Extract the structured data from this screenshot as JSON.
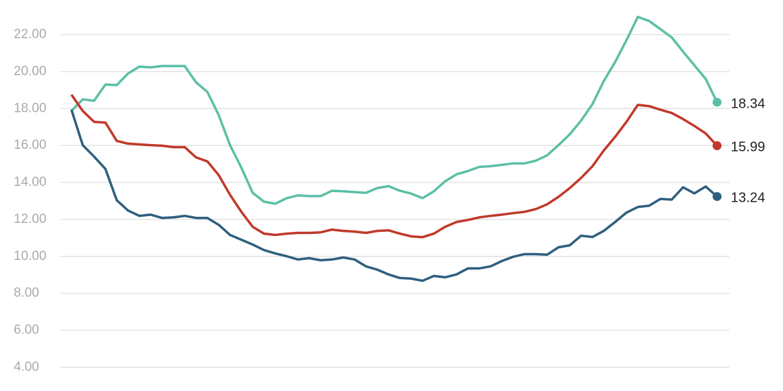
{
  "chart_data": {
    "type": "line",
    "categories": [
      null,
      null,
      null,
      null,
      null,
      null,
      null,
      null,
      null,
      null,
      null,
      null,
      null,
      null,
      null,
      null,
      null,
      null,
      null,
      null,
      null,
      null,
      null,
      null,
      null,
      null,
      null,
      null,
      null,
      null,
      null,
      null,
      null,
      null,
      null,
      null,
      null,
      null,
      null,
      null,
      null,
      null,
      null,
      null,
      null,
      null,
      null,
      null,
      null,
      null,
      null,
      null,
      null,
      null,
      null,
      null,
      null,
      null
    ],
    "series": [
      {
        "color": "#5bbfa6",
        "values": [
          17.87,
          18.5,
          18.42,
          19.3,
          19.27,
          19.9,
          20.27,
          20.23,
          20.3,
          20.3,
          20.3,
          19.42,
          18.9,
          17.65,
          16.02,
          14.8,
          13.44,
          12.96,
          12.85,
          13.15,
          13.3,
          13.26,
          13.26,
          13.55,
          13.52,
          13.48,
          13.44,
          13.7,
          13.8,
          13.55,
          13.4,
          13.15,
          13.52,
          14.07,
          14.44,
          14.62,
          14.84,
          14.88,
          14.95,
          15.03,
          15.03,
          15.18,
          15.47,
          16.02,
          16.61,
          17.35,
          18.24,
          19.49,
          20.52,
          21.7,
          22.96,
          22.74,
          22.3,
          21.85,
          21.08,
          20.34,
          19.6,
          18.34
        ]
      },
      {
        "color": "#c0392b",
        "values": [
          18.75,
          17.87,
          17.28,
          17.24,
          16.25,
          16.1,
          16.06,
          16.02,
          15.99,
          15.91,
          15.91,
          15.36,
          15.14,
          14.4,
          13.33,
          12.41,
          11.6,
          11.23,
          11.16,
          11.23,
          11.27,
          11.27,
          11.3,
          11.45,
          11.38,
          11.34,
          11.27,
          11.38,
          11.41,
          11.23,
          11.08,
          11.04,
          11.23,
          11.6,
          11.86,
          11.97,
          12.11,
          12.19,
          12.26,
          12.34,
          12.41,
          12.56,
          12.82,
          13.22,
          13.7,
          14.25,
          14.88,
          15.73,
          16.47,
          17.28,
          18.2,
          18.13,
          17.94,
          17.76,
          17.43,
          17.06,
          16.65,
          15.99
        ]
      },
      {
        "color": "#2e5f7e",
        "values": [
          17.94,
          16.02,
          15.4,
          14.73,
          13.04,
          12.48,
          12.19,
          12.26,
          12.08,
          12.11,
          12.19,
          12.08,
          12.08,
          11.71,
          11.16,
          10.9,
          10.64,
          10.34,
          10.16,
          10.01,
          9.83,
          9.9,
          9.79,
          9.83,
          9.94,
          9.83,
          9.46,
          9.28,
          9.02,
          8.83,
          8.8,
          8.68,
          8.94,
          8.87,
          9.02,
          9.35,
          9.35,
          9.46,
          9.75,
          9.98,
          10.12,
          10.12,
          10.09,
          10.49,
          10.6,
          11.12,
          11.05,
          11.38,
          11.86,
          12.37,
          12.67,
          12.74,
          13.11,
          13.07,
          13.74,
          13.41,
          13.78,
          13.24
        ]
      }
    ],
    "ylim": [
      2.9,
      23.8
    ],
    "yticks": [
      {
        "value": 4,
        "label": "4.00"
      },
      {
        "value": 6,
        "label": "6.00"
      },
      {
        "value": 8,
        "label": "8.00"
      },
      {
        "value": 10,
        "label": "10.00"
      },
      {
        "value": 12,
        "label": "12.00"
      },
      {
        "value": 14,
        "label": "14.00"
      },
      {
        "value": 16,
        "label": "16.00"
      },
      {
        "value": 18,
        "label": "18.00"
      },
      {
        "value": 20,
        "label": "20.00"
      },
      {
        "value": 22,
        "label": "22.00"
      }
    ],
    "grid": true
  }
}
